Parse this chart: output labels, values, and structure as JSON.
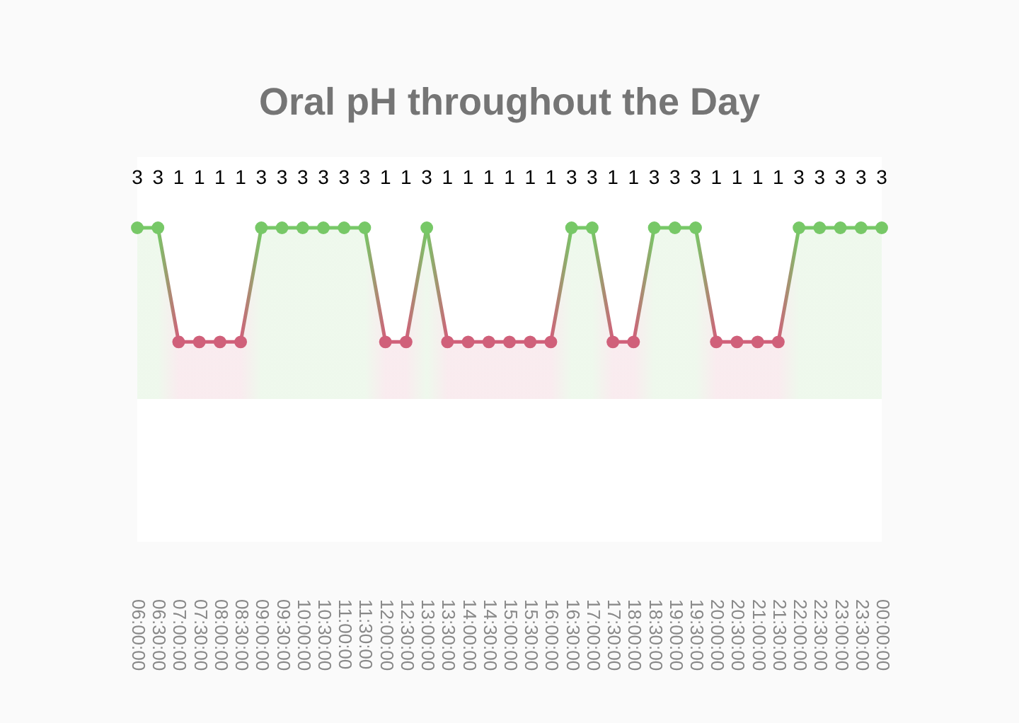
{
  "chart_data": {
    "type": "area",
    "title": "Oral pH throughout the Day",
    "categories": [
      "06:00:00",
      "06:30:00",
      "07:00:00",
      "07:30:00",
      "08:00:00",
      "08:30:00",
      "09:00:00",
      "09:30:00",
      "10:00:00",
      "10:30:00",
      "11:00:00",
      "11:30:00",
      "12:00:00",
      "12:30:00",
      "13:00:00",
      "13:30:00",
      "14:00:00",
      "14:30:00",
      "15:00:00",
      "15:30:00",
      "16:00:00",
      "16:30:00",
      "17:00:00",
      "17:30:00",
      "18:00:00",
      "18:30:00",
      "19:00:00",
      "19:30:00",
      "20:00:00",
      "20:30:00",
      "21:00:00",
      "21:30:00",
      "22:00:00",
      "22:30:00",
      "23:00:00",
      "23:30:00",
      "00:00:00"
    ],
    "values": [
      3,
      3,
      1,
      1,
      1,
      1,
      3,
      3,
      3,
      3,
      3,
      3,
      1,
      1,
      3,
      1,
      1,
      1,
      1,
      1,
      1,
      3,
      3,
      1,
      1,
      3,
      3,
      3,
      1,
      1,
      1,
      1,
      3,
      3,
      3,
      3,
      3
    ],
    "colors": [
      "#77c867",
      "#77c867",
      "#d0607a",
      "#d0607a",
      "#d0607a",
      "#d0607a",
      "#77c867",
      "#77c867",
      "#77c867",
      "#77c867",
      "#77c867",
      "#77c867",
      "#d0607a",
      "#d0607a",
      "#77c867",
      "#d0607a",
      "#d0607a",
      "#d0607a",
      "#d0607a",
      "#d0607a",
      "#d0607a",
      "#77c867",
      "#77c867",
      "#d0607a",
      "#d0607a",
      "#77c867",
      "#77c867",
      "#77c867",
      "#d0607a",
      "#d0607a",
      "#d0607a",
      "#d0607a",
      "#77c867",
      "#77c867",
      "#77c867",
      "#77c867",
      "#77c867"
    ],
    "data_labels": true,
    "tick_labels": "x",
    "grid": false,
    "legend": false,
    "marker": "circle",
    "line_style": "solid"
  }
}
